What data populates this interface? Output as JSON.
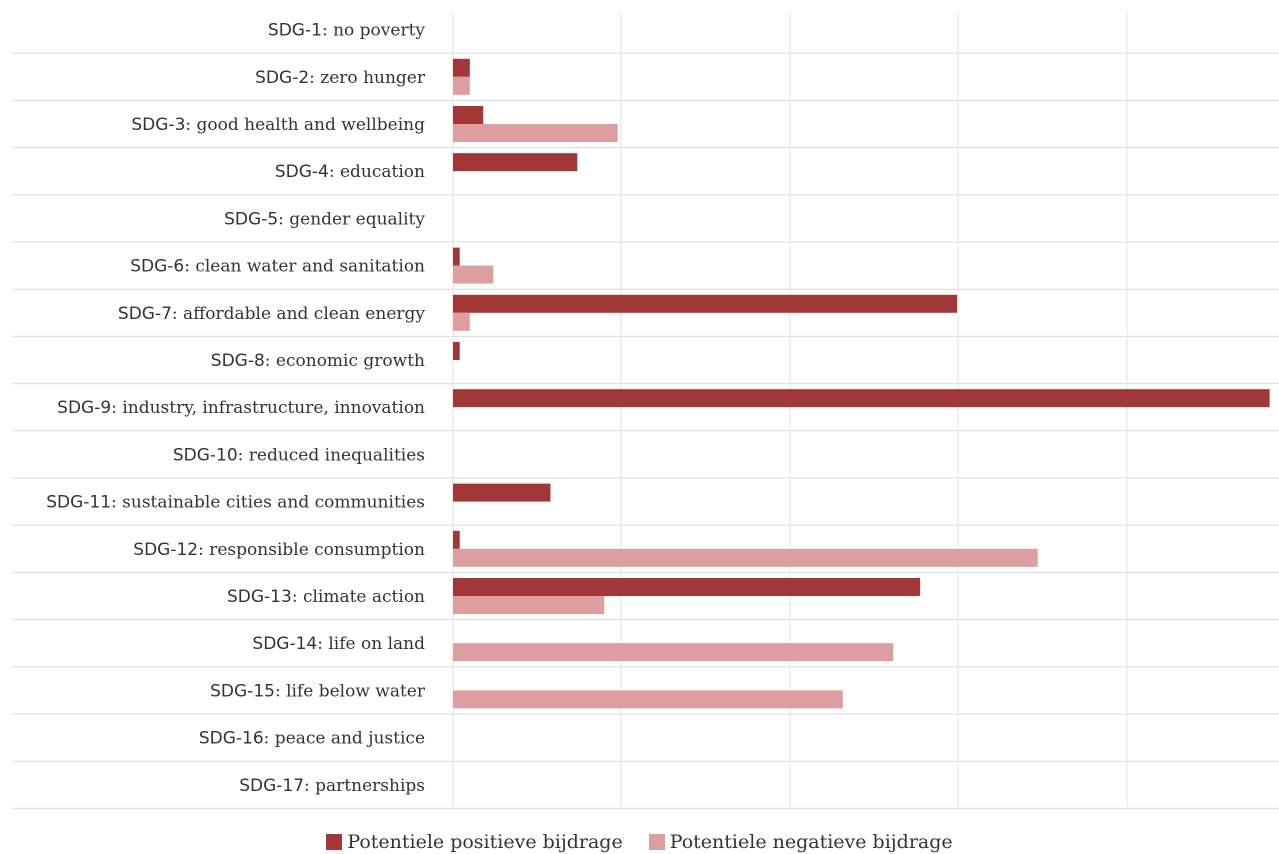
{
  "chart_data": {
    "type": "bar",
    "orientation": "horizontal",
    "categories": [
      {
        "code": "SDG-1",
        "name": ": no poverty"
      },
      {
        "code": "SDG-2",
        "name": ": zero hunger"
      },
      {
        "code": "SDG-3",
        "name": ": good health and wellbeing"
      },
      {
        "code": "SDG-4",
        "name": ": education"
      },
      {
        "code": "SDG-5",
        "name": ": gender equality"
      },
      {
        "code": "SDG-6",
        "name": ": clean water and sanitation"
      },
      {
        "code": "SDG-7",
        "name": ": affordable and clean energy"
      },
      {
        "code": "SDG-8",
        "name": ": economic growth"
      },
      {
        "code": "SDG-9",
        "name": ": industry, infrastructure, innovation"
      },
      {
        "code": "SDG-10",
        "name": ": reduced inequalities"
      },
      {
        "code": "SDG-11",
        "name": ": sustainable cities and communities"
      },
      {
        "code": "SDG-12",
        "name": ": responsible consumption"
      },
      {
        "code": "SDG-13",
        "name": ": climate action"
      },
      {
        "code": "SDG-14",
        "name": ": life on land"
      },
      {
        "code": "SDG-15",
        "name": ": life below water"
      },
      {
        "code": "SDG-16",
        "name": ": peace and justice"
      },
      {
        "code": "SDG-17",
        "name": ": partnerships"
      }
    ],
    "series": [
      {
        "name": "Potentiele positieve bijdrage",
        "color": "#a13737",
        "values": [
          0,
          0.5,
          0.9,
          3.7,
          0,
          0.2,
          15.0,
          0.2,
          24.3,
          0,
          2.9,
          0.2,
          13.9,
          0,
          0,
          0,
          0
        ]
      },
      {
        "name": "Potentiele negatieve bijdrage",
        "color": "#dc9e9e",
        "values": [
          0,
          0.5,
          4.9,
          0,
          0,
          1.2,
          0.5,
          0,
          0,
          0,
          0,
          17.4,
          4.5,
          13.1,
          11.6,
          0,
          0
        ]
      }
    ],
    "xlim": [
      0,
      24.4
    ],
    "grid": true,
    "legend_position": "bottom-center"
  }
}
